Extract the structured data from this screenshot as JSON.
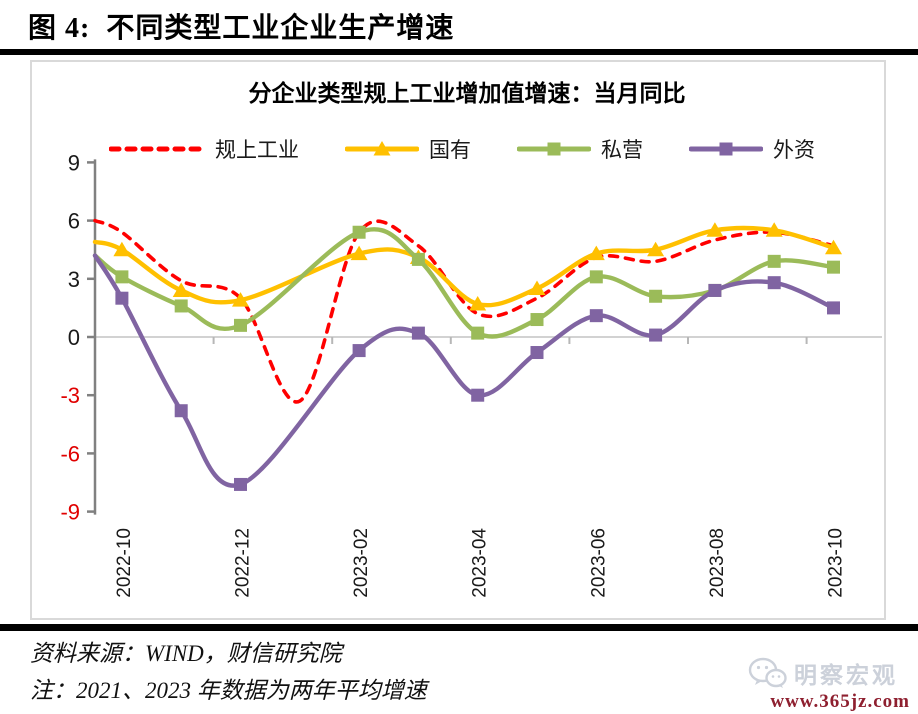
{
  "page": {
    "title": "图 4:  不同类型工业企业生产增速",
    "source_line": "资料来源：WIND，财信研究院",
    "note_line": "注：2021、2023 年数据为两年平均增速",
    "watermark": {
      "brand": "明察宏观",
      "url": "www.365jz.com"
    }
  },
  "chart_data": {
    "type": "line",
    "title": "分企业类型规上工业增加值增速：当月同比",
    "x": [
      "2022-09",
      "2022-10",
      "2022-11",
      "2022-12",
      "2023-01",
      "2023-02",
      "2023-03",
      "2023-04",
      "2023-05",
      "2023-06",
      "2023-07",
      "2023-08",
      "2023-09",
      "2023-10"
    ],
    "x_tick_labels": [
      "2022-10",
      "2022-12",
      "2023-02",
      "2023-04",
      "2023-06",
      "2023-08",
      "2023-10"
    ],
    "x_tick_indices": [
      1,
      3,
      5,
      7,
      9,
      11,
      13
    ],
    "ylim": [
      -9,
      9
    ],
    "y_ticks": [
      9,
      6,
      3,
      0,
      -3,
      -6,
      -9
    ],
    "grid": "zero-line-only",
    "legend_position": "top",
    "smooth_lines": true,
    "colors": {
      "axis": "#808080",
      "zero_line": "#d2d2d2",
      "tick_label_positive": "#1a1a1a",
      "tick_label_negative": "#e00000"
    },
    "series": [
      {
        "name": "规上工业",
        "color": "#ff0000",
        "style": "dashed",
        "marker": "none",
        "values": [
          6.0,
          5.4,
          2.9,
          2.0,
          -3.3,
          5.4,
          4.7,
          1.2,
          2.0,
          4.1,
          3.9,
          5.0,
          5.4,
          4.7
        ]
      },
      {
        "name": "国有",
        "color": "#ffc000",
        "style": "solid",
        "marker": "triangle",
        "values": [
          4.9,
          4.5,
          2.4,
          1.9,
          null,
          4.3,
          4.1,
          1.7,
          2.5,
          4.3,
          4.5,
          5.5,
          5.5,
          4.6
        ]
      },
      {
        "name": "私营",
        "color": "#9bbb59",
        "style": "solid",
        "marker": "square",
        "values": [
          4.2,
          3.1,
          1.6,
          0.6,
          null,
          5.4,
          4.0,
          0.2,
          0.9,
          3.1,
          2.1,
          2.4,
          3.9,
          3.6
        ]
      },
      {
        "name": "外资",
        "color": "#8064a2",
        "style": "solid",
        "marker": "square",
        "values": [
          4.2,
          2.0,
          -3.8,
          -7.6,
          null,
          -0.7,
          0.2,
          -3.0,
          -0.8,
          1.1,
          0.1,
          2.4,
          2.8,
          1.5
        ]
      }
    ]
  }
}
